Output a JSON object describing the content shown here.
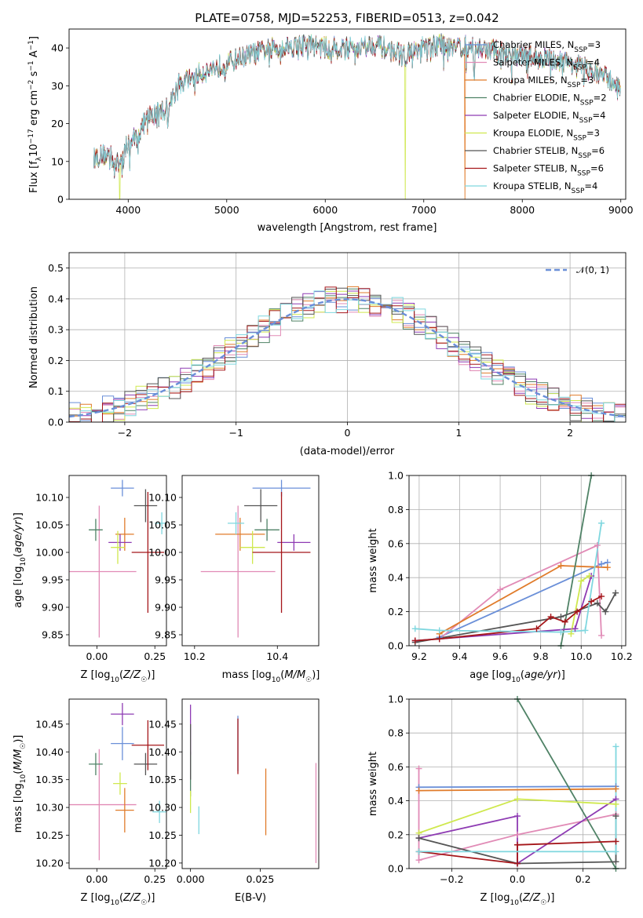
{
  "chart_data": [
    {
      "type": "line",
      "title": "PLATE=0758, MJD=52253, FIBERID=0513, z=0.042",
      "xlabel": "wavelength [Angstrom, rest frame]",
      "ylabel": "Flux [f_λ 10^-17 erg cm^-2 s^-1 A^-1]",
      "xlim": [
        3400,
        9050
      ],
      "ylim": [
        0,
        45
      ],
      "xticks": [
        4000,
        5000,
        6000,
        7000,
        8000,
        9000
      ],
      "yticks": [
        0,
        10,
        20,
        30,
        40
      ],
      "legend_position": "right",
      "series": [
        {
          "name": "Chabrier MILES",
          "nssp": "3",
          "color": "#6a8fd8"
        },
        {
          "name": "Salpeter MILES",
          "nssp": "4",
          "color": "#e18bb6"
        },
        {
          "name": "Kroupa MILES",
          "nssp": "3",
          "color": "#e07b2a"
        },
        {
          "name": "Chabrier ELODIE",
          "nssp": "2",
          "color": "#4f8266"
        },
        {
          "name": "Salpeter ELODIE",
          "nssp": "4",
          "color": "#8e3bb3"
        },
        {
          "name": "Kroupa ELODIE",
          "nssp": "3",
          "color": "#cfe84e"
        },
        {
          "name": "Chabrier STELIB",
          "nssp": "6",
          "color": "#555555"
        },
        {
          "name": "Salpeter STELIB",
          "nssp": "6",
          "color": "#a5161a"
        },
        {
          "name": "Kroupa STELIB",
          "nssp": "4",
          "color": "#7fd7df"
        }
      ],
      "spectrum_knots": {
        "x": [
          3650,
          3800,
          3900,
          4000,
          4100,
          4200,
          4400,
          4500,
          4700,
          5000,
          5200,
          5500,
          5800,
          6000,
          6300,
          6500,
          6800,
          7000,
          7200,
          7500,
          7800,
          8000,
          8300,
          8500,
          8800,
          9000
        ],
        "y": [
          11,
          12,
          9,
          15,
          17,
          22,
          24,
          30,
          33,
          36,
          38,
          40,
          41,
          40,
          40,
          41,
          38,
          40,
          41,
          40,
          39,
          38,
          37,
          36,
          33,
          30
        ]
      },
      "dips": [
        {
          "x": 3915,
          "color": "#cfe84e"
        },
        {
          "x": 6810,
          "color": "#cfe84e"
        },
        {
          "x": 7420,
          "color": "#e07b2a"
        }
      ]
    },
    {
      "type": "line",
      "subtype": "histogram",
      "xlabel": "(data-model)/error",
      "ylabel": "Normed distribution",
      "xlim": [
        -2.5,
        2.5
      ],
      "ylim": [
        0,
        0.55
      ],
      "xticks": [
        -2,
        -1,
        0,
        1,
        2
      ],
      "yticks": [
        0.0,
        0.1,
        0.2,
        0.3,
        0.4,
        0.5
      ],
      "grid": true,
      "legend_position": "top-right",
      "reference_label": "𝒩(0, 1)",
      "reference_color": "#6a8fd8"
    },
    {
      "type": "scatter",
      "xlabel": "Z [log10(Z/Z☉)]",
      "ylabel": "age  [log10(age/yr)]",
      "xlim": [
        -0.12,
        0.3
      ],
      "ylim": [
        9.83,
        10.14
      ],
      "xticks": [
        0.0,
        0.25
      ],
      "xtick_labels": [
        "0.00",
        "0.25"
      ],
      "yticks": [
        9.85,
        9.9,
        9.95,
        10.0,
        10.05,
        10.1
      ],
      "points": [
        {
          "x": 0.11,
          "y": 10.117,
          "xerr": 0.05,
          "yerr": 0.015,
          "color": "#6a8fd8"
        },
        {
          "x": 0.01,
          "y": 9.965,
          "xerr": 0.16,
          "yerr": 0.12,
          "color": "#e18bb6"
        },
        {
          "x": 0.12,
          "y": 10.033,
          "xerr": 0.04,
          "yerr": 0.03,
          "color": "#e07b2a"
        },
        {
          "x": -0.005,
          "y": 10.041,
          "xerr": 0.03,
          "yerr": 0.02,
          "color": "#4f8266"
        },
        {
          "x": 0.1,
          "y": 10.018,
          "xerr": 0.05,
          "yerr": 0.015,
          "color": "#8e3bb3"
        },
        {
          "x": 0.09,
          "y": 10.009,
          "xerr": 0.03,
          "yerr": 0.03,
          "color": "#cfe84e"
        },
        {
          "x": 0.21,
          "y": 10.085,
          "xerr": 0.05,
          "yerr": 0.03,
          "color": "#555555"
        },
        {
          "x": 0.22,
          "y": 10.0,
          "xerr": 0.07,
          "yerr": 0.11,
          "color": "#a5161a"
        },
        {
          "x": 0.28,
          "y": 10.053,
          "xerr": 0.03,
          "yerr": 0.02,
          "color": "#7fd7df"
        }
      ]
    },
    {
      "type": "scatter",
      "xlabel": "mass [log10(M/M☉)]",
      "ylabel": "",
      "xlim": [
        10.17,
        10.5
      ],
      "ylim": [
        9.83,
        10.14
      ],
      "xticks": [
        10.2,
        10.4
      ],
      "yticks": [
        9.85,
        9.9,
        9.95,
        10.0,
        10.05,
        10.1
      ],
      "points": [
        {
          "x": 10.41,
          "y": 10.117,
          "xerr": 0.07,
          "yerr": 0.015,
          "color": "#6a8fd8"
        },
        {
          "x": 10.305,
          "y": 9.965,
          "xerr": 0.09,
          "yerr": 0.12,
          "color": "#e18bb6"
        },
        {
          "x": 10.31,
          "y": 10.033,
          "xerr": 0.06,
          "yerr": 0.03,
          "color": "#e07b2a"
        },
        {
          "x": 10.375,
          "y": 10.041,
          "xerr": 0.03,
          "yerr": 0.02,
          "color": "#4f8266"
        },
        {
          "x": 10.44,
          "y": 10.018,
          "xerr": 0.04,
          "yerr": 0.015,
          "color": "#8e3bb3"
        },
        {
          "x": 10.34,
          "y": 10.009,
          "xerr": 0.03,
          "yerr": 0.03,
          "color": "#cfe84e"
        },
        {
          "x": 10.36,
          "y": 10.085,
          "xerr": 0.04,
          "yerr": 0.03,
          "color": "#555555"
        },
        {
          "x": 10.41,
          "y": 10.0,
          "xerr": 0.07,
          "yerr": 0.11,
          "color": "#a5161a"
        },
        {
          "x": 10.3,
          "y": 10.053,
          "xerr": 0.02,
          "yerr": 0.02,
          "color": "#7fd7df"
        }
      ]
    },
    {
      "type": "line",
      "xlabel": "age  [log10(age/yr)]",
      "ylabel": "mass weight",
      "xlim": [
        9.15,
        10.22
      ],
      "ylim": [
        0,
        1
      ],
      "xticks": [
        9.2,
        9.4,
        9.6,
        9.8,
        10.0,
        10.2
      ],
      "yticks": [
        0.0,
        0.2,
        0.4,
        0.6,
        0.8,
        1.0
      ],
      "grid": true,
      "series": [
        {
          "color": "#6a8fd8",
          "x": [
            9.3,
            10.1,
            10.13
          ],
          "y": [
            0.05,
            0.48,
            0.49
          ]
        },
        {
          "color": "#e18bb6",
          "x": [
            9.3,
            9.6,
            10.08,
            10.1
          ],
          "y": [
            0.04,
            0.33,
            0.59,
            0.06
          ]
        },
        {
          "color": "#e07b2a",
          "x": [
            9.3,
            9.9,
            10.13
          ],
          "y": [
            0.07,
            0.47,
            0.46
          ]
        },
        {
          "color": "#4f8266",
          "x": [
            9.9,
            10.05
          ],
          "y": [
            0.0,
            1.0
          ]
        },
        {
          "color": "#8e3bb3",
          "x": [
            9.18,
            9.97,
            10.05
          ],
          "y": [
            0.03,
            0.1,
            0.41
          ]
        },
        {
          "color": "#cfe84e",
          "x": [
            9.95,
            10.0,
            10.04
          ],
          "y": [
            0.07,
            0.38,
            0.41
          ]
        },
        {
          "color": "#555555",
          "x": [
            9.18,
            9.9,
            10.08,
            10.12,
            10.17
          ],
          "y": [
            0.02,
            0.17,
            0.25,
            0.2,
            0.31
          ]
        },
        {
          "color": "#a5161a",
          "x": [
            9.18,
            9.3,
            9.78,
            9.85,
            9.92,
            9.98,
            10.05,
            10.1
          ],
          "y": [
            0.03,
            0.04,
            0.1,
            0.17,
            0.14,
            0.2,
            0.26,
            0.29
          ]
        },
        {
          "color": "#7fd7df",
          "x": [
            9.18,
            9.3,
            9.9,
            10.02,
            10.1
          ],
          "y": [
            0.1,
            0.09,
            0.08,
            0.09,
            0.72
          ]
        }
      ]
    },
    {
      "type": "scatter",
      "xlabel": "Z [log10(Z/Z☉)]",
      "ylabel": "mass [log10(M/M☉)]",
      "xlim": [
        -0.12,
        0.3
      ],
      "ylim": [
        10.19,
        10.495
      ],
      "xticks": [
        0.0,
        0.25
      ],
      "xtick_labels": [
        "0.00",
        "0.25"
      ],
      "yticks": [
        10.2,
        10.25,
        10.3,
        10.35,
        10.4,
        10.45
      ],
      "points": [
        {
          "x": 0.11,
          "y": 10.415,
          "xerr": 0.05,
          "yerr": 0.03,
          "color": "#6a8fd8"
        },
        {
          "x": 0.01,
          "y": 10.305,
          "xerr": 0.16,
          "yerr": 0.1,
          "color": "#e18bb6"
        },
        {
          "x": 0.12,
          "y": 10.295,
          "xerr": 0.04,
          "yerr": 0.04,
          "color": "#e07b2a"
        },
        {
          "x": -0.005,
          "y": 10.378,
          "xerr": 0.03,
          "yerr": 0.02,
          "color": "#4f8266"
        },
        {
          "x": 0.11,
          "y": 10.468,
          "xerr": 0.05,
          "yerr": 0.02,
          "color": "#8e3bb3"
        },
        {
          "x": 0.1,
          "y": 10.343,
          "xerr": 0.03,
          "yerr": 0.02,
          "color": "#cfe84e"
        },
        {
          "x": 0.21,
          "y": 10.378,
          "xerr": 0.05,
          "yerr": 0.02,
          "color": "#555555"
        },
        {
          "x": 0.22,
          "y": 10.412,
          "xerr": 0.07,
          "yerr": 0.045,
          "color": "#a5161a"
        },
        {
          "x": 0.27,
          "y": 10.292,
          "xerr": 0.03,
          "yerr": 0.02,
          "color": "#7fd7df"
        }
      ]
    },
    {
      "type": "scatter",
      "xlabel": "E(B-V)",
      "ylabel": "",
      "xlim": [
        -0.003,
        0.046
      ],
      "ylim": [
        10.19,
        10.495
      ],
      "xticks": [
        0.0,
        0.025
      ],
      "xtick_labels": [
        "0.000",
        "0.025"
      ],
      "yticks": [
        10.2,
        10.25,
        10.3,
        10.35,
        10.4,
        10.45
      ],
      "points": [
        {
          "x": 0.017,
          "y": 10.415,
          "yerr": 0.05,
          "color": "#6a8fd8"
        },
        {
          "x": 0.045,
          "y": 10.29,
          "yerr": 0.09,
          "color": "#e18bb6"
        },
        {
          "x": 0.027,
          "y": 10.31,
          "yerr": 0.06,
          "color": "#e07b2a"
        },
        {
          "x": 0.0,
          "y": 10.36,
          "yerr": 0.04,
          "color": "#4f8266"
        },
        {
          "x": 0.0,
          "y": 10.44,
          "yerr": 0.045,
          "color": "#8e3bb3"
        },
        {
          "x": 0.0,
          "y": 10.31,
          "yerr": 0.02,
          "color": "#cfe84e"
        },
        {
          "x": 0.0,
          "y": 10.4,
          "yerr": 0.05,
          "color": "#555555"
        },
        {
          "x": 0.017,
          "y": 10.41,
          "yerr": 0.05,
          "color": "#a5161a"
        },
        {
          "x": 0.003,
          "y": 10.277,
          "yerr": 0.025,
          "color": "#7fd7df"
        }
      ]
    },
    {
      "type": "line",
      "xlabel": "Z [log10(Z/Z☉)]",
      "ylabel": "mass weight",
      "xlim": [
        -0.33,
        0.33
      ],
      "ylim": [
        0,
        1
      ],
      "xticks": [
        -0.2,
        0.0,
        0.2
      ],
      "xtick_labels": [
        "−0.2",
        "0.0",
        "0.2"
      ],
      "yticks": [
        0.0,
        0.2,
        0.4,
        0.6,
        0.8,
        1.0
      ],
      "grid": true,
      "series": [
        {
          "color": "#6a8fd8",
          "x": [
            -0.3,
            0.3
          ],
          "y": [
            0.48,
            0.485
          ]
        },
        {
          "color": "#e18bb6",
          "x": [
            -0.3,
            -0.3,
            0.0,
            0.3
          ],
          "y": [
            0.59,
            0.05,
            0.2,
            0.32
          ]
        },
        {
          "color": "#e07b2a",
          "x": [
            -0.3,
            0.3
          ],
          "y": [
            0.46,
            0.47
          ]
        },
        {
          "color": "#4f8266",
          "x": [
            0.0,
            0.3
          ],
          "y": [
            1.0,
            0.0
          ]
        },
        {
          "color": "#8e3bb3",
          "x": [
            -0.3,
            0.0,
            0.0,
            0.3
          ],
          "y": [
            0.18,
            0.31,
            0.03,
            0.41
          ]
        },
        {
          "color": "#cfe84e",
          "x": [
            -0.3,
            0.0,
            0.3
          ],
          "y": [
            0.21,
            0.41,
            0.38
          ]
        },
        {
          "color": "#555555",
          "x": [
            -0.3,
            0.0,
            0.3,
            0.3
          ],
          "y": [
            0.18,
            0.03,
            0.04,
            0.31
          ]
        },
        {
          "color": "#a5161a",
          "x": [
            -0.3,
            0.0,
            0.0,
            0.3
          ],
          "y": [
            0.1,
            0.03,
            0.14,
            0.16
          ]
        },
        {
          "color": "#7fd7df",
          "x": [
            -0.3,
            0.3,
            0.3
          ],
          "y": [
            0.1,
            0.1,
            0.72
          ]
        }
      ]
    }
  ]
}
